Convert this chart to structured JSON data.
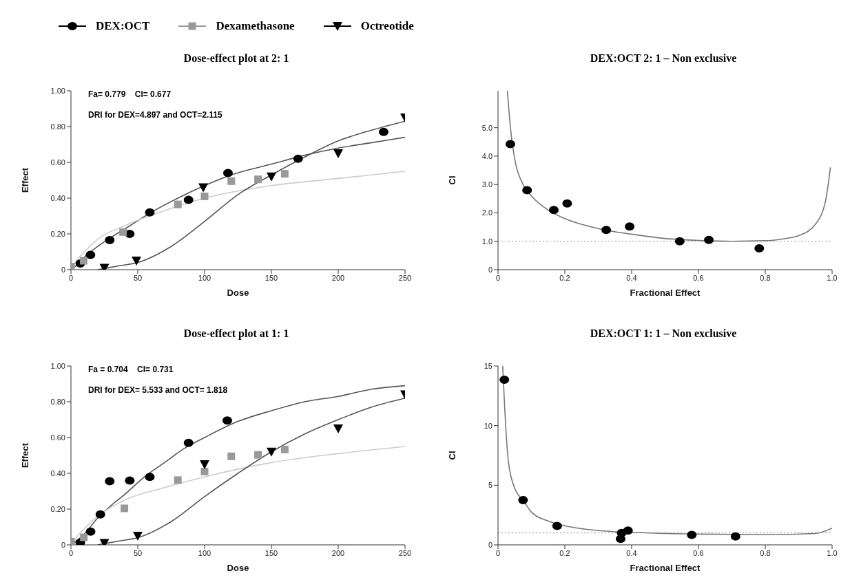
{
  "chart_data": [
    {
      "type": "scatter",
      "title": "Dose-effect plot at 2: 1",
      "xlabel": "Dose",
      "ylabel": "Effect",
      "xlim": [
        0,
        250
      ],
      "xticks": [
        0,
        50,
        100,
        150,
        200,
        250
      ],
      "ylim": [
        0,
        1
      ],
      "yticks": [
        {
          "value": 0,
          "label": "0"
        },
        {
          "value": 0.2,
          "label": "0.20"
        },
        {
          "value": 0.4,
          "label": "0.40"
        },
        {
          "value": 0.6,
          "label": "0.60"
        },
        {
          "value": 0.8,
          "label": "0.80"
        },
        {
          "value": 1,
          "label": "1.00"
        }
      ],
      "annotations": [
        "Fa= 0.779    CI= 0.677",
        "DRI for DEX=4.897 and OCT=2.115"
      ],
      "legend": "top",
      "series": [
        {
          "type": "line",
          "color": "#555555",
          "x": [
            0,
            5,
            10,
            20,
            30,
            45,
            60,
            80,
            100,
            120,
            150,
            175,
            200,
            225,
            250
          ],
          "values": [
            0,
            0.03,
            0.07,
            0.13,
            0.18,
            0.25,
            0.32,
            0.4,
            0.47,
            0.53,
            0.59,
            0.64,
            0.68,
            0.71,
            0.74
          ]
        },
        {
          "type": "line",
          "color": "#cccccc",
          "x": [
            0,
            5,
            10,
            20,
            40,
            70,
            100,
            150,
            200,
            250
          ],
          "values": [
            0,
            0.06,
            0.1,
            0.17,
            0.245,
            0.33,
            0.4,
            0.47,
            0.51,
            0.55
          ]
        },
        {
          "type": "line",
          "color": "#555555",
          "x": [
            20,
            35,
            50,
            75,
            100,
            125,
            150,
            175,
            200,
            225,
            250
          ],
          "values": [
            0,
            0.02,
            0.04,
            0.13,
            0.27,
            0.42,
            0.53,
            0.63,
            0.72,
            0.78,
            0.83
          ]
        },
        {
          "name": "DEX:OCT",
          "type": "scatter",
          "marker": "circle",
          "color": "#000000",
          "x": [
            7,
            14.6,
            29,
            44,
            59,
            88,
            117.5,
            170,
            234
          ],
          "values": [
            0.035,
            0.083,
            0.165,
            0.2,
            0.32,
            0.39,
            0.54,
            0.62,
            0.77
          ]
        },
        {
          "name": "Dexamethasone",
          "type": "scatter",
          "marker": "square",
          "color": "#999999",
          "x": [
            0,
            9.5,
            39,
            80,
            100,
            120,
            140,
            160
          ],
          "values": [
            0.017,
            0.05,
            0.21,
            0.365,
            0.41,
            0.495,
            0.505,
            0.536
          ]
        },
        {
          "name": "Octreotide",
          "type": "scatter",
          "marker": "triangle",
          "color": "#000000",
          "x": [
            25,
            49,
            99,
            150,
            200,
            250
          ],
          "values": [
            0.01,
            0.05,
            0.46,
            0.52,
            0.65,
            0.85
          ]
        }
      ]
    },
    {
      "type": "scatter",
      "title": "DEX:OCT  2: 1 – Non exclusive",
      "xlabel": "Fractional Effect",
      "ylabel": "CI",
      "xlim": [
        0,
        1
      ],
      "xticks": [
        0,
        0.2,
        0.4,
        0.6,
        0.8,
        {
          "value": 1,
          "label": "1.0"
        }
      ],
      "ylim": [
        0,
        6.3
      ],
      "yticks": [
        {
          "value": 0,
          "label": "0"
        },
        {
          "value": 1,
          "label": "1.0"
        },
        {
          "value": 2,
          "label": "2.0"
        },
        {
          "value": 3,
          "label": "3.0"
        },
        {
          "value": 4,
          "label": "4.0"
        },
        {
          "value": 5,
          "label": "5.0"
        }
      ],
      "ref_lines": [
        {
          "axis": "y",
          "value": 1,
          "color": "#888888",
          "line_style": "dotted"
        }
      ],
      "series": [
        {
          "type": "line",
          "color": "#777777",
          "x": [
            0.028,
            0.03,
            0.04,
            0.05,
            0.075,
            0.1,
            0.15,
            0.2,
            0.3,
            0.4,
            0.5,
            0.6,
            0.7,
            0.8,
            0.85,
            0.9,
            0.95,
            0.98,
            0.995
          ],
          "values": [
            6.3,
            6.0,
            4.7,
            3.9,
            3.0,
            2.6,
            2.1,
            1.8,
            1.45,
            1.25,
            1.1,
            1.03,
            1.0,
            1.02,
            1.08,
            1.2,
            1.6,
            2.4,
            3.6
          ]
        },
        {
          "type": "scatter",
          "marker": "circle",
          "color": "#000000",
          "x": [
            0.037,
            0.087,
            0.167,
            0.207,
            0.324,
            0.394,
            0.544,
            0.631,
            0.782
          ],
          "values": [
            4.42,
            2.8,
            2.1,
            2.33,
            1.4,
            1.52,
            1.0,
            1.05,
            0.75
          ]
        }
      ]
    },
    {
      "type": "scatter",
      "title": "Dose-effect plot at 1: 1",
      "xlabel": "Dose",
      "ylabel": "Effect",
      "xlim": [
        0,
        250
      ],
      "xticks": [
        0,
        50,
        100,
        150,
        200,
        250
      ],
      "ylim": [
        0,
        1
      ],
      "yticks": [
        {
          "value": 0,
          "label": "0"
        },
        {
          "value": 0.2,
          "label": "0.20"
        },
        {
          "value": 0.4,
          "label": "0.40"
        },
        {
          "value": 0.6,
          "label": "0.60"
        },
        {
          "value": 0.8,
          "label": "0.80"
        },
        {
          "value": 1,
          "label": "1.00"
        }
      ],
      "annotations": [
        "Fa = 0.704    CI= 0.731",
        "DRI for DEX= 5.533 and OCT= 1.818"
      ],
      "series": [
        {
          "type": "line",
          "color": "#555555",
          "x": [
            0,
            10,
            20,
            30,
            40,
            55,
            70,
            85,
            100,
            125,
            150,
            175,
            200,
            225,
            250
          ],
          "values": [
            0,
            0.06,
            0.15,
            0.22,
            0.28,
            0.38,
            0.46,
            0.54,
            0.6,
            0.69,
            0.75,
            0.8,
            0.83,
            0.87,
            0.89
          ]
        },
        {
          "type": "line",
          "color": "#cccccc",
          "x": [
            0,
            5,
            10,
            20,
            40,
            70,
            100,
            150,
            200,
            250
          ],
          "values": [
            0,
            0.05,
            0.09,
            0.16,
            0.25,
            0.32,
            0.38,
            0.46,
            0.51,
            0.55
          ]
        },
        {
          "type": "line",
          "color": "#555555",
          "x": [
            20,
            35,
            50,
            75,
            100,
            125,
            150,
            175,
            200,
            225,
            250
          ],
          "values": [
            0,
            0.02,
            0.04,
            0.13,
            0.27,
            0.4,
            0.52,
            0.62,
            0.7,
            0.77,
            0.82
          ]
        },
        {
          "type": "scatter",
          "marker": "circle",
          "color": "#000000",
          "x": [
            7,
            14.7,
            22,
            29,
            44,
            59,
            88,
            117
          ],
          "values": [
            0.013,
            0.074,
            0.17,
            0.356,
            0.36,
            0.38,
            0.57,
            0.695
          ]
        },
        {
          "type": "scatter",
          "marker": "square",
          "color": "#999999",
          "x": [
            0,
            9.6,
            40,
            80,
            100,
            120,
            140,
            160
          ],
          "values": [
            0.017,
            0.042,
            0.204,
            0.362,
            0.41,
            0.495,
            0.503,
            0.533
          ]
        },
        {
          "type": "scatter",
          "marker": "triangle",
          "color": "#000000",
          "x": [
            25,
            50,
            100,
            150,
            200,
            250
          ],
          "values": [
            0.01,
            0.05,
            0.45,
            0.52,
            0.65,
            0.84
          ]
        }
      ]
    },
    {
      "type": "scatter",
      "title": "DEX:OCT  1: 1 – Non exclusive",
      "xlabel": "Fractional Effect",
      "ylabel": "CI",
      "xlim": [
        0,
        1
      ],
      "xticks": [
        0,
        0.2,
        0.4,
        0.6,
        0.8,
        {
          "value": 1,
          "label": "1.0"
        }
      ],
      "ylim": [
        0,
        15
      ],
      "yticks": [
        0,
        5,
        10,
        15
      ],
      "ref_lines": [
        {
          "axis": "y",
          "value": 1,
          "color": "#888888",
          "line_style": "dotted"
        }
      ],
      "series": [
        {
          "type": "line",
          "color": "#777777",
          "x": [
            0.014,
            0.02,
            0.031,
            0.05,
            0.075,
            0.1,
            0.15,
            0.2,
            0.3,
            0.4,
            0.5,
            0.6,
            0.8,
            0.95,
            1.0
          ],
          "values": [
            15,
            11.5,
            7.0,
            4.75,
            3.75,
            2.75,
            2.0,
            1.6,
            1.2,
            1.05,
            0.95,
            0.9,
            0.85,
            0.95,
            1.4
          ]
        },
        {
          "type": "scatter",
          "marker": "circle",
          "color": "#000000",
          "x": [
            0.019,
            0.075,
            0.177,
            0.367,
            0.37,
            0.389,
            0.58,
            0.711
          ],
          "values": [
            13.85,
            3.75,
            1.58,
            0.5,
            1.0,
            1.2,
            0.83,
            0.7
          ]
        }
      ]
    }
  ]
}
